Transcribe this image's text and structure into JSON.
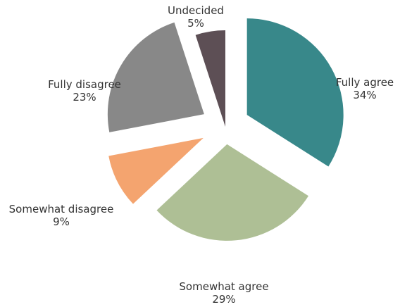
{
  "chart_data": {
    "type": "pie",
    "title": "",
    "exploded": true,
    "slices": [
      {
        "label": "Fully agree",
        "value": 34,
        "value_label": "34%",
        "color": "#38888a"
      },
      {
        "label": "Somewhat agree",
        "value": 29,
        "value_label": "29%",
        "color": "#aebf95"
      },
      {
        "label": "Somewhat disagree",
        "value": 9,
        "value_label": "9%",
        "color": "#f4a46f"
      },
      {
        "label": "Fully disagree",
        "value": 23,
        "value_label": "23%",
        "color": "#888888"
      },
      {
        "label": "Undecided",
        "value": 5,
        "value_label": "5%",
        "color": "#5d4f55"
      }
    ]
  }
}
